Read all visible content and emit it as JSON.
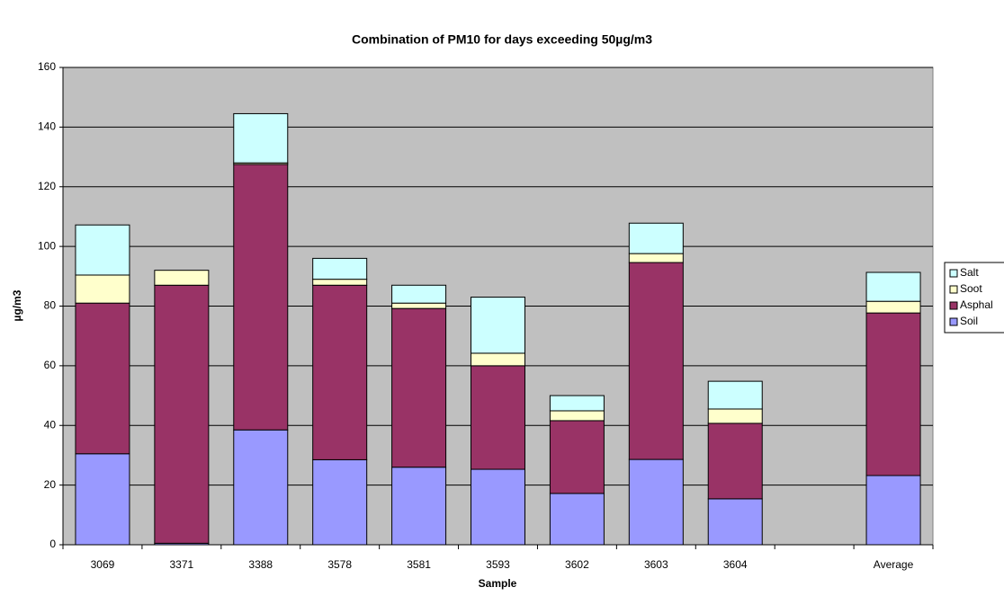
{
  "chart_data": {
    "type": "bar",
    "stacked": true,
    "title": "Combination of PM10 for days exceeding 50µg/m3",
    "x_label": "Sample",
    "y_label": "µg/m3",
    "categories": [
      "3069",
      "3371",
      "3388",
      "3578",
      "3581",
      "3593",
      "3602",
      "3603",
      "3604",
      null,
      "Average"
    ],
    "series": [
      {
        "name": "Soil",
        "color": "#9999ff",
        "values": [
          30.5,
          0.5,
          38.5,
          28.5,
          26,
          25.3,
          17.2,
          28.6,
          15.4,
          null,
          23.2
        ]
      },
      {
        "name": "Asphal",
        "color": "#993366",
        "values": [
          50.5,
          86.5,
          89,
          58.5,
          53.2,
          34.7,
          24.4,
          66,
          25.3,
          null,
          54.5
        ]
      },
      {
        "name": "Soot",
        "color": "#ffffcc",
        "values": [
          9.4,
          5,
          0.5,
          2,
          1.8,
          4.2,
          3.3,
          3,
          4.8,
          null,
          3.9
        ]
      },
      {
        "name": "Salt",
        "color": "#ccffff",
        "values": [
          16.8,
          0,
          16.5,
          7,
          6,
          18.8,
          5.1,
          10.2,
          9.3,
          null,
          9.7
        ]
      }
    ],
    "ylim": [
      0,
      160
    ],
    "yticks": [
      0,
      20,
      40,
      60,
      80,
      100,
      120,
      140,
      160
    ],
    "grid": true,
    "plot_background": "#c0c0c0",
    "legend": "right"
  }
}
